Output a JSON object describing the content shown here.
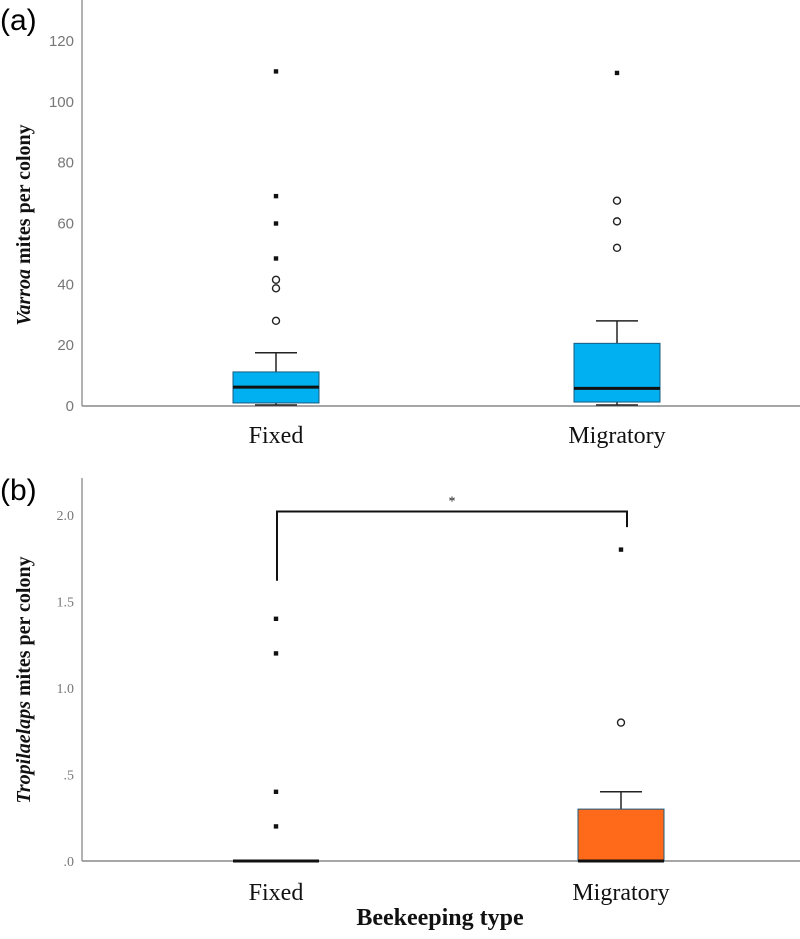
{
  "panel_labels": [
    "(a)",
    "(b)"
  ],
  "chart_data": [
    {
      "type": "boxplot",
      "panel": "(a)",
      "ylabel_italic": "Varroa",
      "ylabel_rest": " mites per colony",
      "xlabel": "",
      "categories": [
        "Fixed",
        "Migratory"
      ],
      "ylim": [
        0,
        130
      ],
      "yticks": [
        0,
        20,
        40,
        60,
        80,
        100,
        120
      ],
      "ytick_labels": [
        "0",
        "20",
        "40",
        "60",
        "80",
        "100",
        "120"
      ],
      "fill_color": "#00b0f0",
      "grid": false,
      "boxes": [
        {
          "category": "Fixed",
          "whisker_low": 0,
          "q1": 1,
          "median": 6.2,
          "q3": 11.2,
          "whisker_high": 17.5,
          "outliers_open": [
            28,
            38.7,
            41.5
          ],
          "outliers_extreme": [
            48.5,
            60,
            69,
            110
          ]
        },
        {
          "category": "Migratory",
          "whisker_low": 0,
          "q1": 1.3,
          "median": 5.8,
          "q3": 20.6,
          "whisker_high": 28,
          "outliers_open": [
            52,
            60.7,
            67.5
          ],
          "outliers_extreme": [
            109.5
          ]
        }
      ]
    },
    {
      "type": "boxplot",
      "panel": "(b)",
      "ylabel_italic": "Tropilaelaps",
      "ylabel_rest": " mites per colony",
      "xlabel": "Beekeeping type",
      "categories": [
        "Fixed",
        "Migratory"
      ],
      "ylim": [
        0,
        2.2
      ],
      "yticks": [
        0,
        0.5,
        1.0,
        1.5,
        2.0
      ],
      "ytick_labels": [
        ".0",
        ".5",
        "1.0",
        "1.5",
        "2.0"
      ],
      "fill_color": "#ff6a1a",
      "grid": false,
      "boxes": [
        {
          "category": "Fixed",
          "whisker_low": 0,
          "q1": 0,
          "median": 0,
          "q3": 0,
          "whisker_high": 0,
          "outliers_open": [],
          "outliers_extreme": [
            0.2,
            0.4,
            1.2,
            1.4
          ]
        },
        {
          "category": "Migratory",
          "whisker_low": 0,
          "q1": 0,
          "median": 0,
          "q3": 0.3,
          "whisker_high": 0.4,
          "outliers_open": [
            0.8
          ],
          "outliers_extreme": [
            1.8
          ]
        }
      ],
      "significance": {
        "label": "*",
        "between": [
          "Fixed",
          "Migratory"
        ]
      }
    }
  ]
}
